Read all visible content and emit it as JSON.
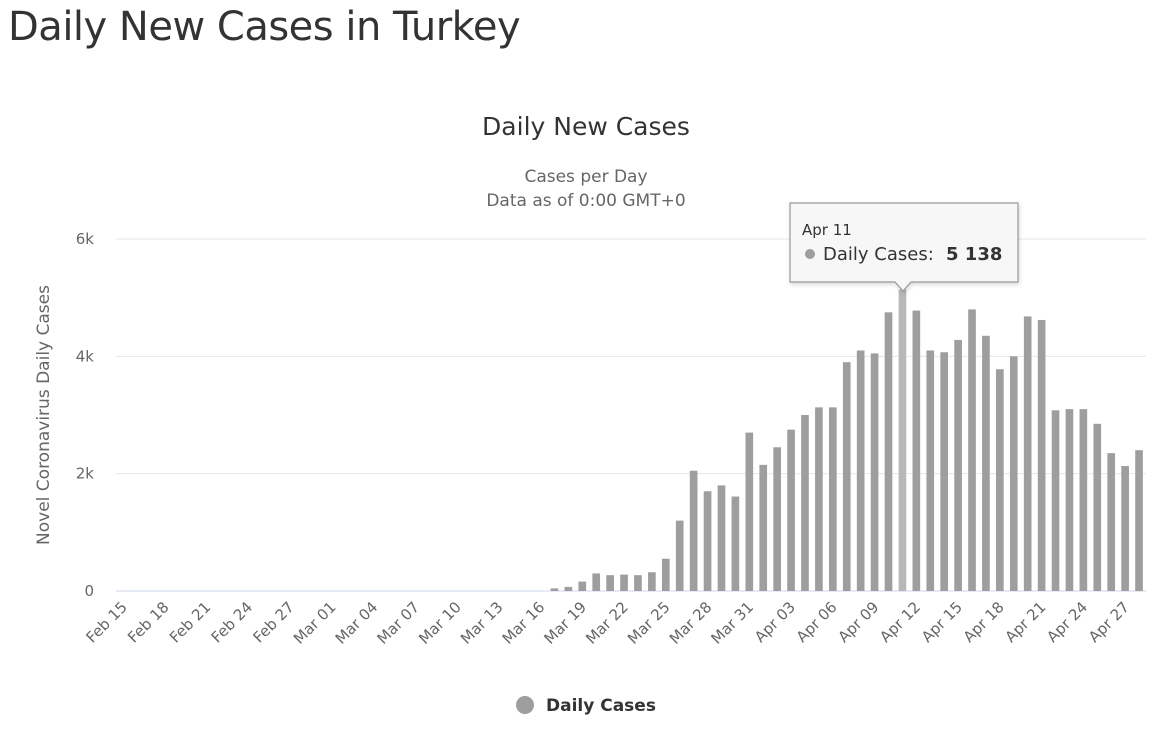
{
  "page": {
    "heading": "Daily New Cases in Turkey"
  },
  "chart_data": {
    "type": "bar",
    "title": "Daily New Cases",
    "subtitle": [
      "Cases per Day",
      "Data as of 0:00 GMT+0"
    ],
    "ylabel": "Novel Coronavirus Daily Cases",
    "ylim": [
      0,
      6000
    ],
    "yticks": [
      0,
      2000,
      4000,
      6000
    ],
    "ytick_labels": [
      "0",
      "2k",
      "4k",
      "6k"
    ],
    "grid": true,
    "legend": {
      "position": "bottom-center",
      "entries": [
        "Daily Cases"
      ]
    },
    "bar_color": "#9e9e9e",
    "highlight_color": "#b8b8b8",
    "categories": [
      "Feb 15",
      "Feb 16",
      "Feb 17",
      "Feb 18",
      "Feb 19",
      "Feb 20",
      "Feb 21",
      "Feb 22",
      "Feb 23",
      "Feb 24",
      "Feb 25",
      "Feb 26",
      "Feb 27",
      "Feb 28",
      "Feb 29",
      "Mar 01",
      "Mar 02",
      "Mar 03",
      "Mar 04",
      "Mar 05",
      "Mar 06",
      "Mar 07",
      "Mar 08",
      "Mar 09",
      "Mar 10",
      "Mar 11",
      "Mar 12",
      "Mar 13",
      "Mar 14",
      "Mar 15",
      "Mar 16",
      "Mar 17",
      "Mar 18",
      "Mar 19",
      "Mar 20",
      "Mar 21",
      "Mar 22",
      "Mar 23",
      "Mar 24",
      "Mar 25",
      "Mar 26",
      "Mar 27",
      "Mar 28",
      "Mar 29",
      "Mar 30",
      "Mar 31",
      "Apr 01",
      "Apr 02",
      "Apr 03",
      "Apr 04",
      "Apr 05",
      "Apr 06",
      "Apr 07",
      "Apr 08",
      "Apr 09",
      "Apr 10",
      "Apr 11",
      "Apr 12",
      "Apr 13",
      "Apr 14",
      "Apr 15",
      "Apr 16",
      "Apr 17",
      "Apr 18",
      "Apr 19",
      "Apr 20",
      "Apr 21",
      "Apr 22",
      "Apr 23",
      "Apr 24",
      "Apr 25",
      "Apr 26",
      "Apr 27",
      "Apr 28"
    ],
    "x_tick_labels": [
      "Feb 15",
      "Feb 18",
      "Feb 21",
      "Feb 24",
      "Feb 27",
      "Mar 01",
      "Mar 04",
      "Mar 07",
      "Mar 10",
      "Mar 13",
      "Mar 16",
      "Mar 19",
      "Mar 22",
      "Mar 25",
      "Mar 28",
      "Mar 31",
      "Apr 03",
      "Apr 06",
      "Apr 09",
      "Apr 12",
      "Apr 15",
      "Apr 18",
      "Apr 21",
      "Apr 24",
      "Apr 27"
    ],
    "series": [
      {
        "name": "Daily Cases",
        "values": [
          0,
          0,
          0,
          0,
          0,
          0,
          0,
          0,
          0,
          0,
          0,
          0,
          0,
          0,
          0,
          0,
          0,
          0,
          0,
          0,
          0,
          0,
          0,
          0,
          0,
          0,
          0,
          0,
          0,
          0,
          0,
          45,
          70,
          160,
          300,
          270,
          280,
          270,
          320,
          550,
          1200,
          2050,
          1700,
          1800,
          1610,
          2700,
          2150,
          2450,
          2750,
          3000,
          3130,
          3130,
          3900,
          4100,
          4050,
          4750,
          5138,
          4780,
          4100,
          4070,
          4280,
          4800,
          4350,
          3780,
          4000,
          4680,
          4620,
          3080,
          3100,
          3100,
          2850,
          2350,
          2130,
          2400
        ]
      }
    ],
    "tooltip": {
      "date": "Apr 11",
      "label": "Daily Cases:",
      "value": "5 138"
    }
  }
}
